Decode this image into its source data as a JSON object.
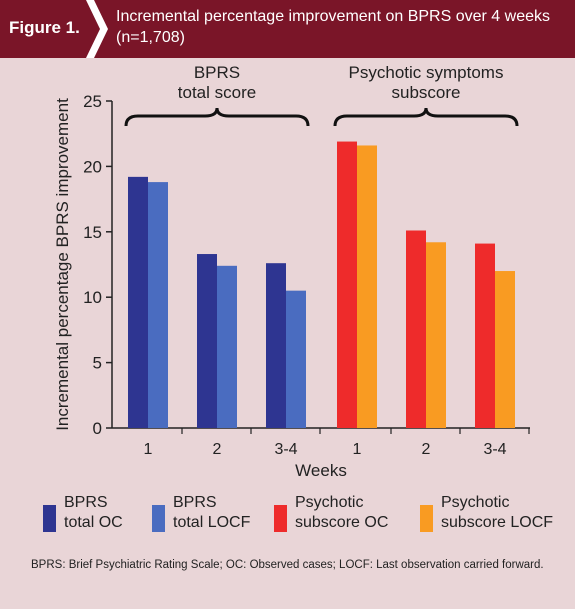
{
  "header": {
    "figure_label": "Figure 1.",
    "title": "Incremental percentage improvement on BPRS over 4 weeks (n=1,708)"
  },
  "colors": {
    "header_bg": "#7a1528",
    "page_bg": "#e9d5d7",
    "bprs_oc": "#2e3591",
    "bprs_locf": "#4a6cc0",
    "psychotic_oc": "#ee2b2b",
    "psychotic_locf": "#f99b22"
  },
  "chart_data": {
    "type": "bar",
    "ylabel": "Incremental percentage BPRS improvement",
    "xlabel": "Weeks",
    "ylim": [
      0,
      25
    ],
    "yticks": [
      0,
      5,
      10,
      15,
      20,
      25
    ],
    "groups": [
      {
        "label": "BPRS\ntotal score",
        "categories": [
          "1",
          "2",
          "3-4"
        ],
        "series": [
          {
            "name": "BPRS total OC",
            "color": "#2e3591",
            "values": [
              19.2,
              13.3,
              12.6
            ]
          },
          {
            "name": "BPRS total LOCF",
            "color": "#4a6cc0",
            "values": [
              18.8,
              12.4,
              10.5
            ]
          }
        ]
      },
      {
        "label": "Psychotic symptoms\nsubscore",
        "categories": [
          "1",
          "2",
          "3-4"
        ],
        "series": [
          {
            "name": "Psychotic subscore OC",
            "color": "#ee2b2b",
            "values": [
              21.9,
              15.1,
              14.1
            ]
          },
          {
            "name": "Psychotic subscore LOCF",
            "color": "#f99b22",
            "values": [
              21.6,
              14.2,
              12.0
            ]
          }
        ]
      }
    ]
  },
  "legend": [
    {
      "label": "BPRS\ntotal OC",
      "color": "#2e3591"
    },
    {
      "label": "BPRS\ntotal LOCF",
      "color": "#4a6cc0"
    },
    {
      "label": "Psychotic\nsubscore OC",
      "color": "#ee2b2b"
    },
    {
      "label": "Psychotic\nsubscore LOCF",
      "color": "#f99b22"
    }
  ],
  "footnote": "BPRS: Brief Psychiatric Rating Scale; OC: Observed cases; LOCF: Last observation carried forward."
}
